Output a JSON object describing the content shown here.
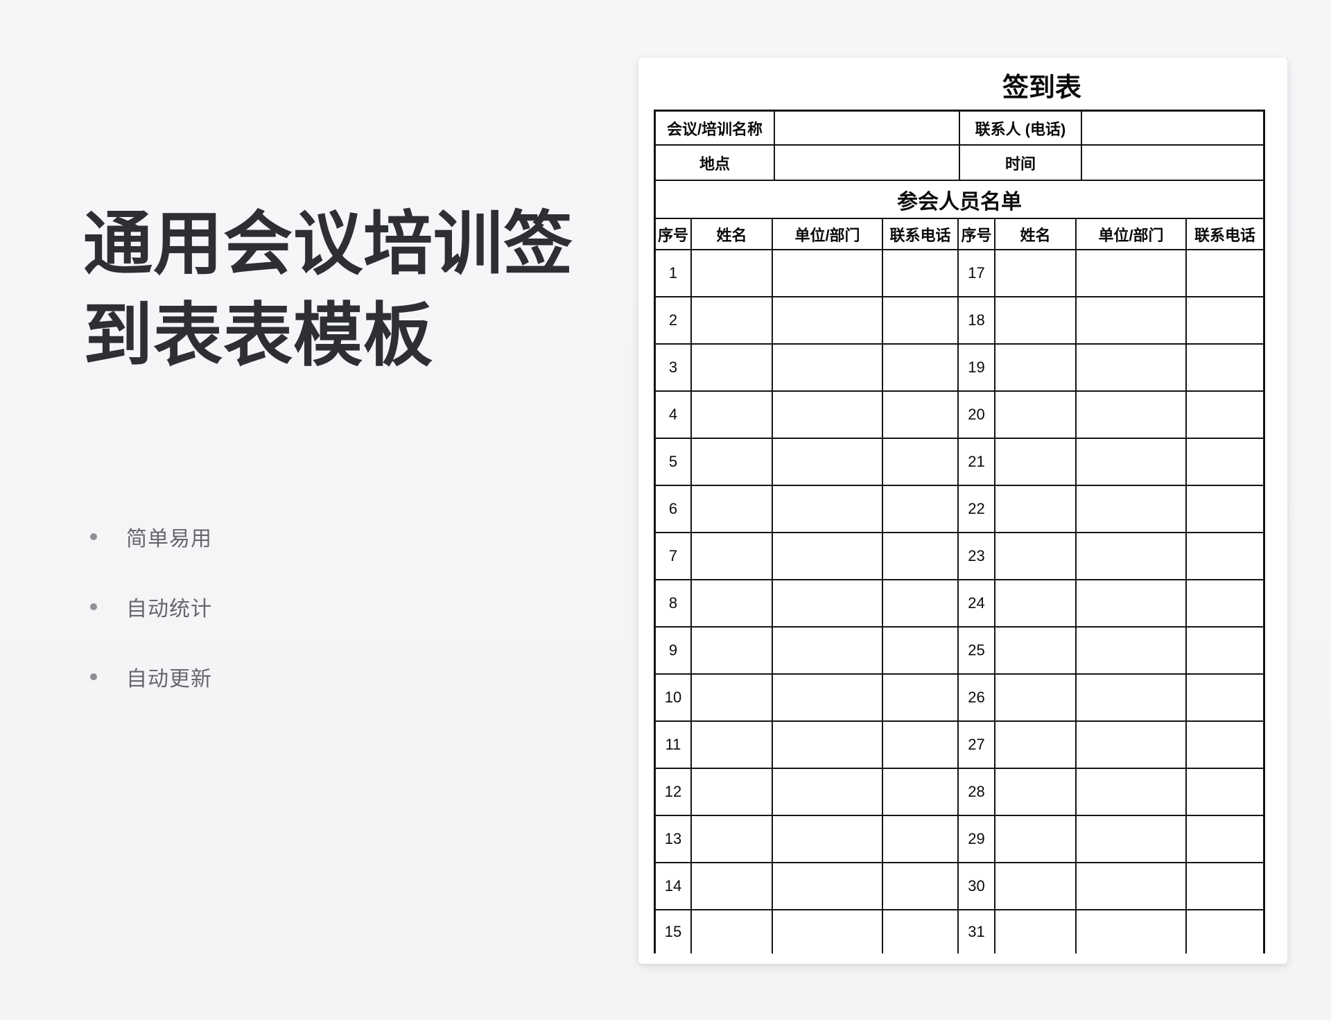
{
  "left_panel": {
    "headline": "通用会议培训签到表表模板",
    "bullets": [
      "简单易用",
      "自动统计",
      "自动更新"
    ]
  },
  "document": {
    "title": "签到表",
    "info_table": {
      "rows": [
        {
          "label1": "会议/培训名称",
          "value1": "",
          "label2": "联系人 (电话)",
          "value2": ""
        },
        {
          "label1": "地点",
          "value1": "",
          "label2": "时间",
          "value2": ""
        }
      ]
    },
    "section_header": "参会人员名单",
    "attendee_table": {
      "columns": [
        "序号",
        "姓名",
        "单位/部门",
        "联系电话",
        "序号",
        "姓名",
        "单位/部门",
        "联系电话"
      ],
      "rows": [
        {
          "no_left": "1",
          "name_left": "",
          "dept_left": "",
          "phone_left": "",
          "no_right": "17",
          "name_right": "",
          "dept_right": "",
          "phone_right": ""
        },
        {
          "no_left": "2",
          "name_left": "",
          "dept_left": "",
          "phone_left": "",
          "no_right": "18",
          "name_right": "",
          "dept_right": "",
          "phone_right": ""
        },
        {
          "no_left": "3",
          "name_left": "",
          "dept_left": "",
          "phone_left": "",
          "no_right": "19",
          "name_right": "",
          "dept_right": "",
          "phone_right": ""
        },
        {
          "no_left": "4",
          "name_left": "",
          "dept_left": "",
          "phone_left": "",
          "no_right": "20",
          "name_right": "",
          "dept_right": "",
          "phone_right": ""
        },
        {
          "no_left": "5",
          "name_left": "",
          "dept_left": "",
          "phone_left": "",
          "no_right": "21",
          "name_right": "",
          "dept_right": "",
          "phone_right": ""
        },
        {
          "no_left": "6",
          "name_left": "",
          "dept_left": "",
          "phone_left": "",
          "no_right": "22",
          "name_right": "",
          "dept_right": "",
          "phone_right": ""
        },
        {
          "no_left": "7",
          "name_left": "",
          "dept_left": "",
          "phone_left": "",
          "no_right": "23",
          "name_right": "",
          "dept_right": "",
          "phone_right": ""
        },
        {
          "no_left": "8",
          "name_left": "",
          "dept_left": "",
          "phone_left": "",
          "no_right": "24",
          "name_right": "",
          "dept_right": "",
          "phone_right": ""
        },
        {
          "no_left": "9",
          "name_left": "",
          "dept_left": "",
          "phone_left": "",
          "no_right": "25",
          "name_right": "",
          "dept_right": "",
          "phone_right": ""
        },
        {
          "no_left": "10",
          "name_left": "",
          "dept_left": "",
          "phone_left": "",
          "no_right": "26",
          "name_right": "",
          "dept_right": "",
          "phone_right": ""
        },
        {
          "no_left": "11",
          "name_left": "",
          "dept_left": "",
          "phone_left": "",
          "no_right": "27",
          "name_right": "",
          "dept_right": "",
          "phone_right": ""
        },
        {
          "no_left": "12",
          "name_left": "",
          "dept_left": "",
          "phone_left": "",
          "no_right": "28",
          "name_right": "",
          "dept_right": "",
          "phone_right": ""
        },
        {
          "no_left": "13",
          "name_left": "",
          "dept_left": "",
          "phone_left": "",
          "no_right": "29",
          "name_right": "",
          "dept_right": "",
          "phone_right": ""
        },
        {
          "no_left": "14",
          "name_left": "",
          "dept_left": "",
          "phone_left": "",
          "no_right": "30",
          "name_right": "",
          "dept_right": "",
          "phone_right": ""
        },
        {
          "no_left": "15",
          "name_left": "",
          "dept_left": "",
          "phone_left": "",
          "no_right": "31",
          "name_right": "",
          "dept_right": "",
          "phone_right": ""
        }
      ]
    }
  },
  "colors": {
    "background": "#f4f5f6",
    "headline_text": "#2d2f32",
    "bullet_text": "#66676a",
    "table_border": "#141414",
    "page": "#ffffff"
  }
}
